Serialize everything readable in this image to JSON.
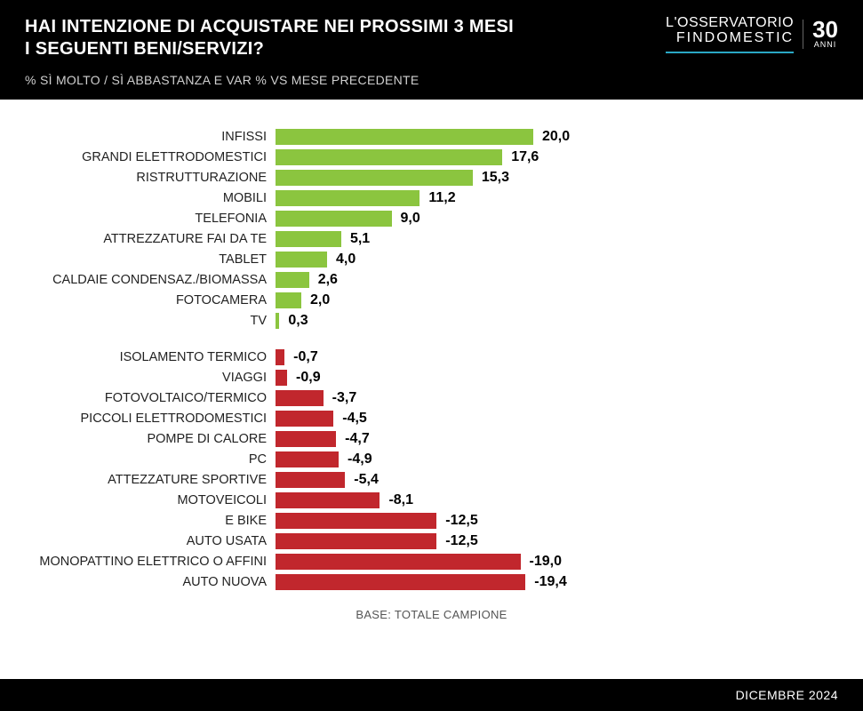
{
  "header": {
    "title": "HAI INTENZIONE DI ACQUISTARE NEI PROSSIMI 3 MESI\nI SEGUENTI BENI/SERVIZI?",
    "subtitle": "% SÌ MOLTO / SÌ ABBASTANZA E VAR % VS MESE PRECEDENTE",
    "logo_line1": "L'OSSERVATORIO",
    "logo_line2": "FINDOMESTIC",
    "logo_num": "30",
    "logo_anni": "ANNI"
  },
  "chart": {
    "type": "bar",
    "xmax": 20.0,
    "positive_color": "#8bc53f",
    "negative_color": "#c1272d",
    "label_fontsize": 14.5,
    "value_fontsize": 16,
    "background_color": "#ffffff",
    "positive": [
      {
        "label": "INFISSI",
        "value": 20.0
      },
      {
        "label": "GRANDI ELETTRODOMESTICI",
        "value": 17.6
      },
      {
        "label": "RISTRUTTURAZIONE",
        "value": 15.3
      },
      {
        "label": "MOBILI",
        "value": 11.2
      },
      {
        "label": "TELEFONIA",
        "value": 9.0
      },
      {
        "label": "ATTREZZATURE FAI DA TE",
        "value": 5.1
      },
      {
        "label": "TABLET",
        "value": 4.0
      },
      {
        "label": "CALDAIE CONDENSAZ./BIOMASSA",
        "value": 2.6
      },
      {
        "label": "FOTOCAMERA",
        "value": 2.0
      },
      {
        "label": "TV",
        "value": 0.3
      }
    ],
    "negative": [
      {
        "label": "ISOLAMENTO TERMICO",
        "value": -0.7
      },
      {
        "label": "VIAGGI",
        "value": -0.9
      },
      {
        "label": "FOTOVOLTAICO/TERMICO",
        "value": -3.7
      },
      {
        "label": "PICCOLI ELETTRODOMESTICI",
        "value": -4.5
      },
      {
        "label": "POMPE DI CALORE",
        "value": -4.7
      },
      {
        "label": "PC",
        "value": -4.9
      },
      {
        "label": "ATTEZZATURE SPORTIVE",
        "value": -5.4
      },
      {
        "label": "MOTOVEICOLI",
        "value": -8.1
      },
      {
        "label": "E BIKE",
        "value": -12.5
      },
      {
        "label": "AUTO USATA",
        "value": -12.5
      },
      {
        "label": "MONOPATTINO ELETTRICO O AFFINI",
        "value": -19.0
      },
      {
        "label": "AUTO NUOVA",
        "value": -19.4
      }
    ]
  },
  "footnote": "BASE: TOTALE CAMPIONE",
  "footer": "DICEMBRE 2024"
}
